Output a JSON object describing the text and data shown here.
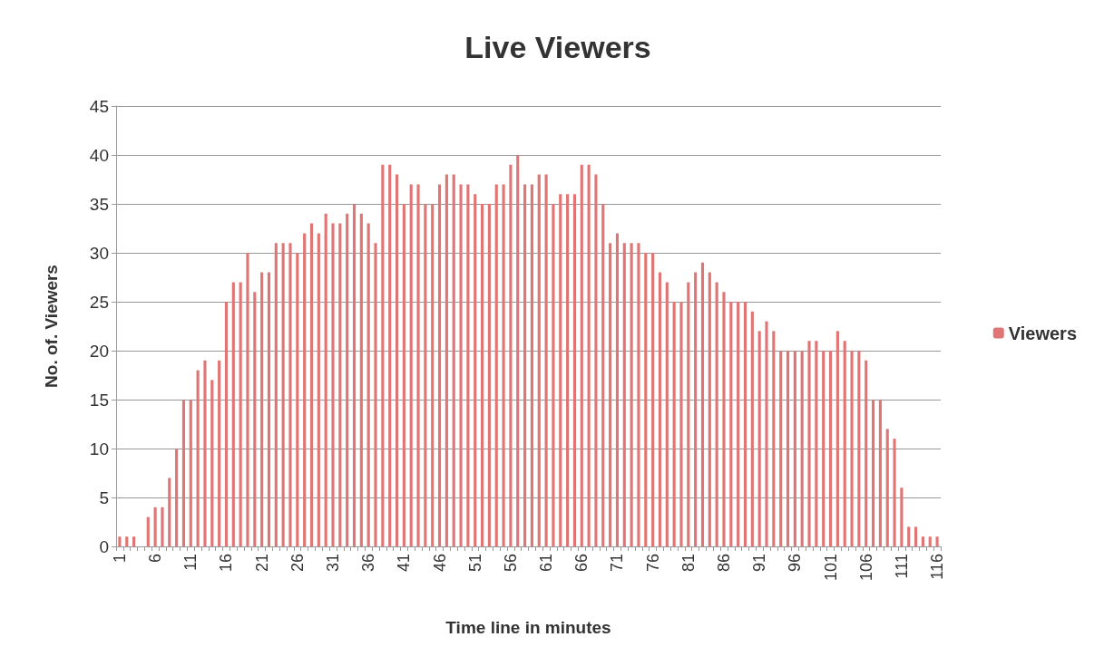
{
  "chart_data": {
    "type": "bar",
    "title": "Live Viewers",
    "xlabel": "Time line in minutes",
    "ylabel": "No. of. Viewers",
    "categories": [
      "1",
      null,
      null,
      null,
      null,
      "6",
      null,
      null,
      null,
      null,
      "11",
      null,
      null,
      null,
      null,
      "16",
      null,
      null,
      null,
      null,
      "21",
      null,
      null,
      null,
      null,
      "26",
      null,
      null,
      null,
      null,
      "31",
      null,
      null,
      null,
      null,
      "36",
      null,
      null,
      null,
      null,
      "41",
      null,
      null,
      null,
      null,
      "46",
      null,
      null,
      null,
      null,
      "51",
      null,
      null,
      null,
      null,
      "56",
      null,
      null,
      null,
      null,
      "61",
      null,
      null,
      null,
      null,
      "66",
      null,
      null,
      null,
      null,
      "71",
      null,
      null,
      null,
      null,
      "76",
      null,
      null,
      null,
      null,
      "81",
      null,
      null,
      null,
      null,
      "86",
      null,
      null,
      null,
      null,
      "91",
      null,
      null,
      null,
      null,
      "96",
      null,
      null,
      null,
      null,
      "101",
      null,
      null,
      null,
      null,
      "106",
      null,
      null,
      null,
      null,
      "111",
      null,
      null,
      null,
      null,
      "116"
    ],
    "series": [
      {
        "name": "Viewers",
        "color": "#e07575",
        "values": [
          1,
          1,
          1,
          0,
          3,
          4,
          4,
          7,
          10,
          15,
          15,
          18,
          19,
          17,
          19,
          25,
          27,
          27,
          30,
          26,
          28,
          28,
          31,
          31,
          31,
          30,
          32,
          33,
          32,
          34,
          33,
          33,
          34,
          35,
          34,
          33,
          31,
          39,
          39,
          38,
          35,
          37,
          37,
          35,
          35,
          37,
          38,
          38,
          37,
          37,
          36,
          35,
          35,
          37,
          37,
          39,
          40,
          37,
          37,
          38,
          38,
          35,
          36,
          36,
          36,
          39,
          39,
          38,
          35,
          31,
          32,
          31,
          31,
          31,
          30,
          30,
          28,
          27,
          25,
          25,
          27,
          28,
          29,
          28,
          27,
          26,
          25,
          25,
          25,
          24,
          22,
          23,
          22,
          20,
          20,
          20,
          20,
          21,
          21,
          20,
          20,
          22,
          21,
          20,
          20,
          19,
          15,
          15,
          12,
          11,
          6,
          2,
          2,
          1,
          1,
          1
        ]
      }
    ],
    "ylim": [
      0,
      45
    ],
    "yticks": [
      0,
      5,
      10,
      15,
      20,
      25,
      30,
      35,
      40,
      45
    ],
    "grid": "y",
    "legend": "right"
  }
}
